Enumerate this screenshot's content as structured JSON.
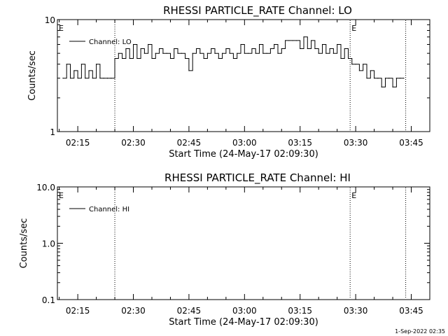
{
  "chart_data": [
    {
      "type": "line",
      "title": "RHESSI PARTICLE_RATE Channel: LO",
      "xlabel": "Start Time (24-May-17 02:09:30)",
      "ylabel": "Counts/sec",
      "yscale": "log",
      "xlim": [
        "02:09:30",
        "03:50:00"
      ],
      "ylim": [
        1,
        10
      ],
      "xticks": [
        "02:15",
        "02:30",
        "02:45",
        "03:00",
        "03:15",
        "03:30",
        "03:45"
      ],
      "yticks": [
        "1",
        "10"
      ],
      "legend": {
        "label": "Channel: LO",
        "placement": "top-left"
      },
      "event_markers": [
        {
          "label": "E",
          "time": "02:09:30"
        },
        {
          "label": "E",
          "time": "03:28:30"
        }
      ],
      "vertical_lines": [
        "02:25:00",
        "03:28:30",
        "03:43:30"
      ],
      "series": [
        {
          "x": [
            "02:11:00",
            "02:12:00",
            "02:13:00",
            "02:14:00",
            "02:15:00",
            "02:16:00",
            "02:17:00",
            "02:18:00",
            "02:19:00",
            "02:20:00",
            "02:21:00",
            "02:22:00",
            "02:23:00",
            "02:24:00",
            "02:25:00",
            "02:26:00",
            "02:27:00",
            "02:28:00",
            "02:29:00",
            "02:30:00",
            "02:31:00",
            "02:32:00",
            "02:33:00",
            "02:34:00",
            "02:35:00",
            "02:36:00",
            "02:37:00",
            "02:38:00",
            "02:39:00",
            "02:40:00",
            "02:41:00",
            "02:42:00",
            "02:43:00",
            "02:44:00",
            "02:45:00",
            "02:46:00",
            "02:47:00",
            "02:48:00",
            "02:49:00",
            "02:50:00",
            "02:51:00",
            "02:52:00",
            "02:53:00",
            "02:54:00",
            "02:55:00",
            "02:56:00",
            "02:57:00",
            "02:58:00",
            "02:59:00",
            "03:00:00",
            "03:01:00",
            "03:02:00",
            "03:03:00",
            "03:04:00",
            "03:05:00",
            "03:06:00",
            "03:07:00",
            "03:08:00",
            "03:09:00",
            "03:10:00",
            "03:11:00",
            "03:12:00",
            "03:13:00",
            "03:14:00",
            "03:15:00",
            "03:16:00",
            "03:17:00",
            "03:18:00",
            "03:19:00",
            "03:20:00",
            "03:21:00",
            "03:22:00",
            "03:23:00",
            "03:24:00",
            "03:25:00",
            "03:26:00",
            "03:27:00",
            "03:28:00",
            "03:29:00",
            "03:30:00",
            "03:31:00",
            "03:32:00",
            "03:33:00",
            "03:34:00",
            "03:35:00",
            "03:36:00",
            "03:37:00",
            "03:38:00",
            "03:39:00",
            "03:40:00",
            "03:41:00",
            "03:42:00",
            "03:43:00"
          ],
          "values": [
            3.0,
            4.0,
            3.0,
            3.5,
            3.0,
            4.0,
            3.0,
            3.5,
            3.0,
            4.0,
            3.0,
            3.0,
            3.0,
            3.0,
            4.5,
            5.0,
            4.5,
            5.5,
            4.5,
            6.0,
            4.5,
            5.5,
            5.0,
            6.0,
            4.5,
            5.0,
            5.5,
            5.0,
            5.0,
            4.5,
            5.5,
            5.0,
            5.0,
            4.5,
            3.5,
            5.0,
            5.5,
            5.0,
            4.5,
            5.0,
            5.5,
            5.0,
            4.5,
            5.0,
            5.5,
            5.0,
            4.5,
            5.0,
            6.0,
            5.0,
            5.0,
            5.5,
            5.0,
            6.0,
            5.0,
            5.0,
            5.5,
            6.0,
            5.0,
            5.5,
            6.5,
            6.5,
            6.5,
            6.5,
            5.5,
            7.0,
            5.5,
            6.5,
            5.5,
            5.0,
            6.0,
            5.0,
            5.5,
            5.0,
            6.0,
            4.5,
            5.5,
            4.5,
            4.0,
            4.0,
            3.5,
            4.0,
            3.0,
            3.5,
            3.0,
            3.0,
            2.5,
            3.0,
            3.0,
            2.5,
            3.0,
            3.0,
            3.0
          ]
        }
      ]
    },
    {
      "type": "line",
      "title": "RHESSI PARTICLE_RATE Channel: HI",
      "xlabel": "Start Time (24-May-17 02:09:30)",
      "ylabel": "Counts/sec",
      "yscale": "log",
      "xlim": [
        "02:09:30",
        "03:50:00"
      ],
      "ylim": [
        0.1,
        10
      ],
      "xticks": [
        "02:15",
        "02:30",
        "02:45",
        "03:00",
        "03:15",
        "03:30",
        "03:45"
      ],
      "yticks": [
        "0.1",
        "1.0",
        "10.0"
      ],
      "legend": {
        "label": "Channel: HI",
        "placement": "top-left"
      },
      "event_markers": [
        {
          "label": "E",
          "time": "02:09:30"
        },
        {
          "label": "E",
          "time": "03:28:30"
        }
      ],
      "vertical_lines": [
        "02:25:00",
        "03:28:30",
        "03:43:30"
      ],
      "series": []
    }
  ],
  "footer": {
    "timestamp": "1-Sep-2022 02:35"
  }
}
